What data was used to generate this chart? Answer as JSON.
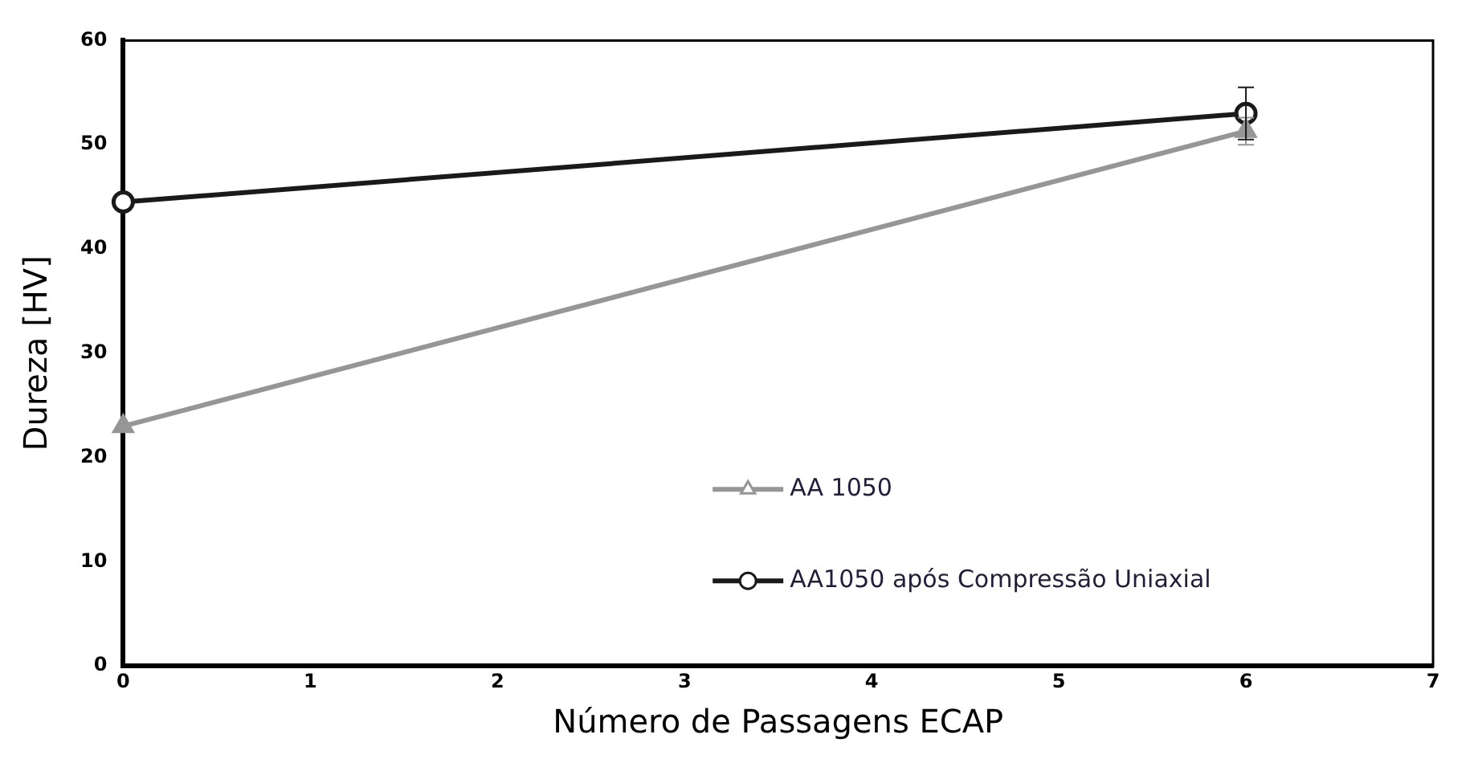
{
  "chart_data": {
    "type": "line",
    "xlabel": "Número de Passagens ECAP",
    "ylabel": "Dureza [HV]",
    "x": [
      0,
      6
    ],
    "xlim": [
      0,
      7
    ],
    "xticks": [
      0,
      1,
      2,
      3,
      4,
      5,
      6,
      7
    ],
    "ylim": [
      0,
      60
    ],
    "yticks": [
      0,
      10,
      20,
      30,
      40,
      50,
      60
    ],
    "grid": false,
    "legend": "bottom",
    "line_style": "solid",
    "series": [
      {
        "name": "AA 1050",
        "color": "#969696",
        "values": [
          23,
          51.3
        ],
        "errors": [
          null,
          1.3
        ],
        "marker": "triangle"
      },
      {
        "name": "AA1050 após Compressão Uniaxial",
        "color": "#1a1a1a",
        "values": [
          44.5,
          53
        ],
        "errors": [
          null,
          2.5
        ],
        "marker": "circle"
      }
    ]
  }
}
